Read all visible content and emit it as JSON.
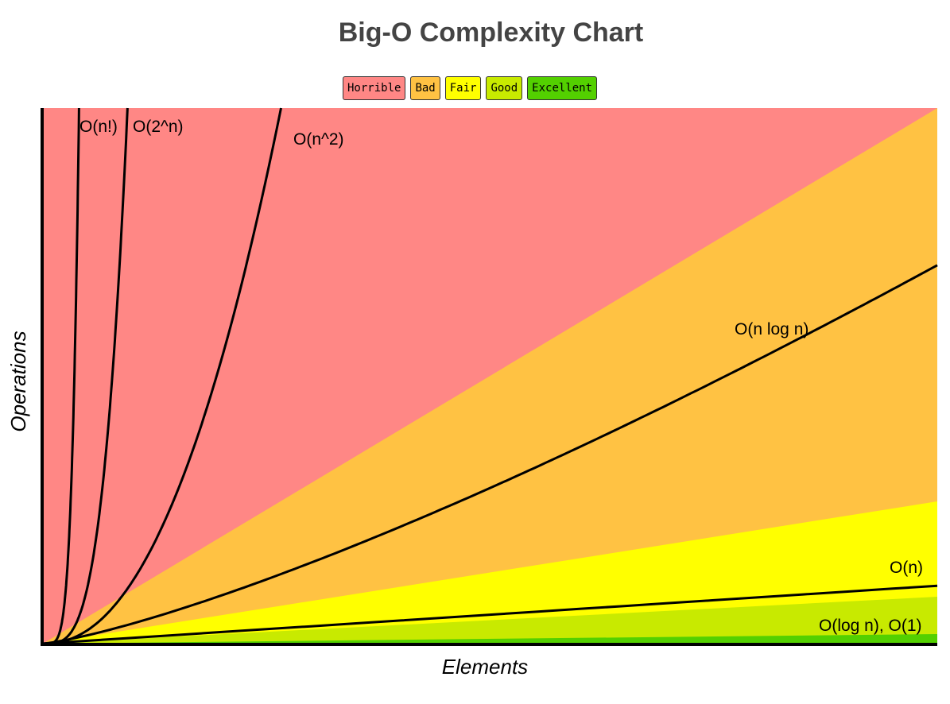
{
  "chart_data": {
    "type": "area",
    "title": "Big-O Complexity Chart",
    "xlabel": "Elements",
    "ylabel": "Operations",
    "legend": [
      {
        "label": "Horrible",
        "color": "#ff8785"
      },
      {
        "label": "Bad",
        "color": "#ffc243"
      },
      {
        "label": "Fair",
        "color": "#ffff00"
      },
      {
        "label": "Good",
        "color": "#c8ea00"
      },
      {
        "label": "Excellent",
        "color": "#53d000"
      }
    ],
    "legend_position": "top-center",
    "grid": false,
    "series": [
      {
        "name": "O(n!)",
        "function": "factorial"
      },
      {
        "name": "O(2^n)",
        "function": "exponential"
      },
      {
        "name": "O(n^2)",
        "function": "quadratic"
      },
      {
        "name": "O(n log n)",
        "function": "linearithmic"
      },
      {
        "name": "O(n)",
        "function": "linear"
      },
      {
        "name": "O(log n), O(1)",
        "function": "logarithmic_constant"
      }
    ]
  }
}
